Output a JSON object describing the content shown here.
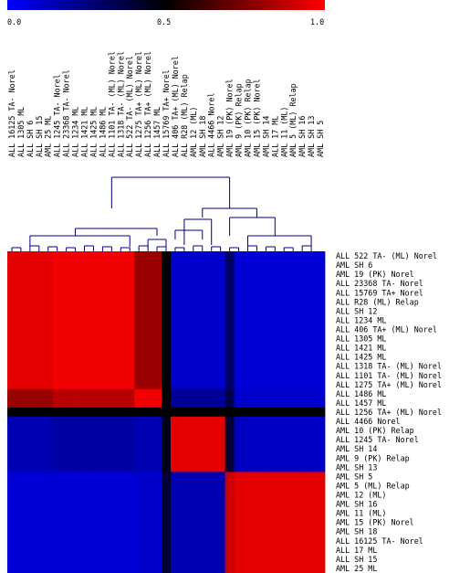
{
  "chart_data": {
    "type": "heatmap",
    "title": "",
    "colorbar": {
      "colors": [
        "#0000ff",
        "#000000",
        "#ff0000"
      ],
      "ticks": [
        "0.0",
        "0.5",
        "1.0"
      ],
      "range": [
        0,
        1
      ]
    },
    "top_labels": [
      "ALL 16125 TA- Norel",
      "ALL 1305 ML",
      "ALL SH 6",
      "ALL SH 15",
      "AML 25 ML",
      "ALL 1245 TA- Norel",
      "ALL 23368 TA- Norel",
      "ALL 1234 ML",
      "ALL 1421 ML",
      "ALL 1425 ML",
      "ALL 1486 ML",
      "ALL 1101 TA- (ML) Norel",
      "ALL 1318 TA- (ML) Norel",
      "ALL 522 TA- (ML) Norel",
      "ALL 1275 TA+ (ML) Norel",
      "ALL 1256 TA+ (ML) Norel",
      "ALL 1457 ML",
      "ALL 15769 TA+ Norel",
      "ALL 406 TA+ (ML) Norel",
      "ALL R28 (ML) Relap",
      "AML 12 (ML)",
      "AML SH 18",
      "ALL 4466 Norel",
      "AML SH 12",
      "AML 19 (PK) Norel",
      "AML 9 (PK) Relap",
      "AML 10 (PK) Relap",
      "AML 15 (PK) Norel",
      "AML SH 14",
      "ALL 17 ML",
      "AML 11 (ML)",
      "AML 5 (ML) Relap",
      "AML SH 16",
      "AML SH 13",
      "AML SH 5"
    ],
    "row_labels": [
      "ALL 522 TA- (ML) Norel",
      "AML SH 6",
      "AML 19 (PK) Norel",
      "ALL 23368 TA- Norel",
      "ALL 15769 TA+ Norel",
      "ALL R28 (ML) Relap",
      "ALL SH 12",
      "ALL 1234 ML",
      "ALL 406 TA+ (ML) Norel",
      "ALL 1305 ML",
      "ALL 1421 ML",
      "ALL 1425 ML",
      "ALL 1318 TA- (ML) Norel",
      "ALL 1101 TA- (ML) Norel",
      "ALL 1275 TA+ (ML) Norel",
      "ALL 1486 ML",
      "ALL 1457 ML",
      "ALL 1256 TA+ (ML) Norel",
      "ALL 4466 Norel",
      "AML 10 (PK) Relap",
      "ALL 1245 TA- Norel",
      "AML SH 14",
      "AML 9 (PK) Relap",
      "AML SH 13",
      "AML SH 5",
      "AML 5 (ML) Relap",
      "AML 12 (ML)",
      "AML SH 16",
      "AML 11 (ML)",
      "AML 15 (PK) Norel",
      "AML SH 18",
      "ALL 16125 TA- Norel",
      "ALL 17 ML",
      "ALL SH 15",
      "AML 25 ML"
    ],
    "row_clusters": [
      {
        "start": 0,
        "count": 15,
        "value": 0.93
      },
      {
        "start": 15,
        "count": 1,
        "value": 0.93
      },
      {
        "start": 16,
        "count": 1,
        "value": 0.93
      },
      {
        "start": 17,
        "count": 1,
        "value": 0.5
      },
      {
        "start": 18,
        "count": 6,
        "value": 0.15
      },
      {
        "start": 24,
        "count": 11,
        "value": 0.1
      }
    ],
    "col_blocks": [
      {
        "count": 5,
        "value": 0.95
      },
      {
        "count": 9,
        "value": 0.95
      },
      {
        "count": 3,
        "value": 0.85
      },
      {
        "count": 1,
        "value": 0.5
      },
      {
        "count": 6,
        "value": 0.12
      },
      {
        "count": 1,
        "value": 0.35
      },
      {
        "count": 11,
        "value": 0.08
      }
    ],
    "block_matrix": [
      [
        0.95,
        0.97,
        0.8,
        0.5,
        0.1,
        0.3,
        0.08
      ],
      [
        0.8,
        0.86,
        0.97,
        0.5,
        0.2,
        0.35,
        0.1
      ],
      [
        0.7,
        0.72,
        0.8,
        0.05,
        0.25,
        0.3,
        0.1
      ],
      [
        0.5,
        0.5,
        0.5,
        0.5,
        0.5,
        0.5,
        0.5
      ],
      [
        0.15,
        0.18,
        0.15,
        0.45,
        0.95,
        0.4,
        0.12
      ],
      [
        0.08,
        0.08,
        0.1,
        0.4,
        0.15,
        0.9,
        0.95
      ]
    ],
    "dendrogram_color": "#000080"
  }
}
